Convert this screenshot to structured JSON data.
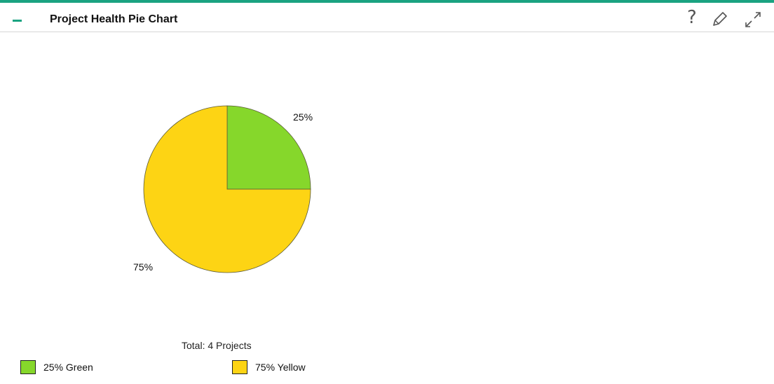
{
  "header": {
    "title": "Project Health Pie Chart",
    "collapse_icon": "minus-icon",
    "help_icon": "help-icon",
    "help_glyph": "?",
    "edit_icon": "pencil-icon",
    "maximize_icon": "expand-icon",
    "accent_color": "#1aa381"
  },
  "chart_data": {
    "type": "pie",
    "title": "",
    "slices": [
      {
        "name": "Green",
        "value": 25,
        "label": "25%",
        "color": "#86d72b"
      },
      {
        "name": "Yellow",
        "value": 75,
        "label": "75%",
        "color": "#fdd414"
      }
    ],
    "total_text": "Total: 4 Projects",
    "legend": [
      {
        "text": "25%  Green",
        "color": "#86d72b"
      },
      {
        "text": "75%  Yellow",
        "color": "#fdd414"
      }
    ],
    "legend_placement": "bottom"
  }
}
